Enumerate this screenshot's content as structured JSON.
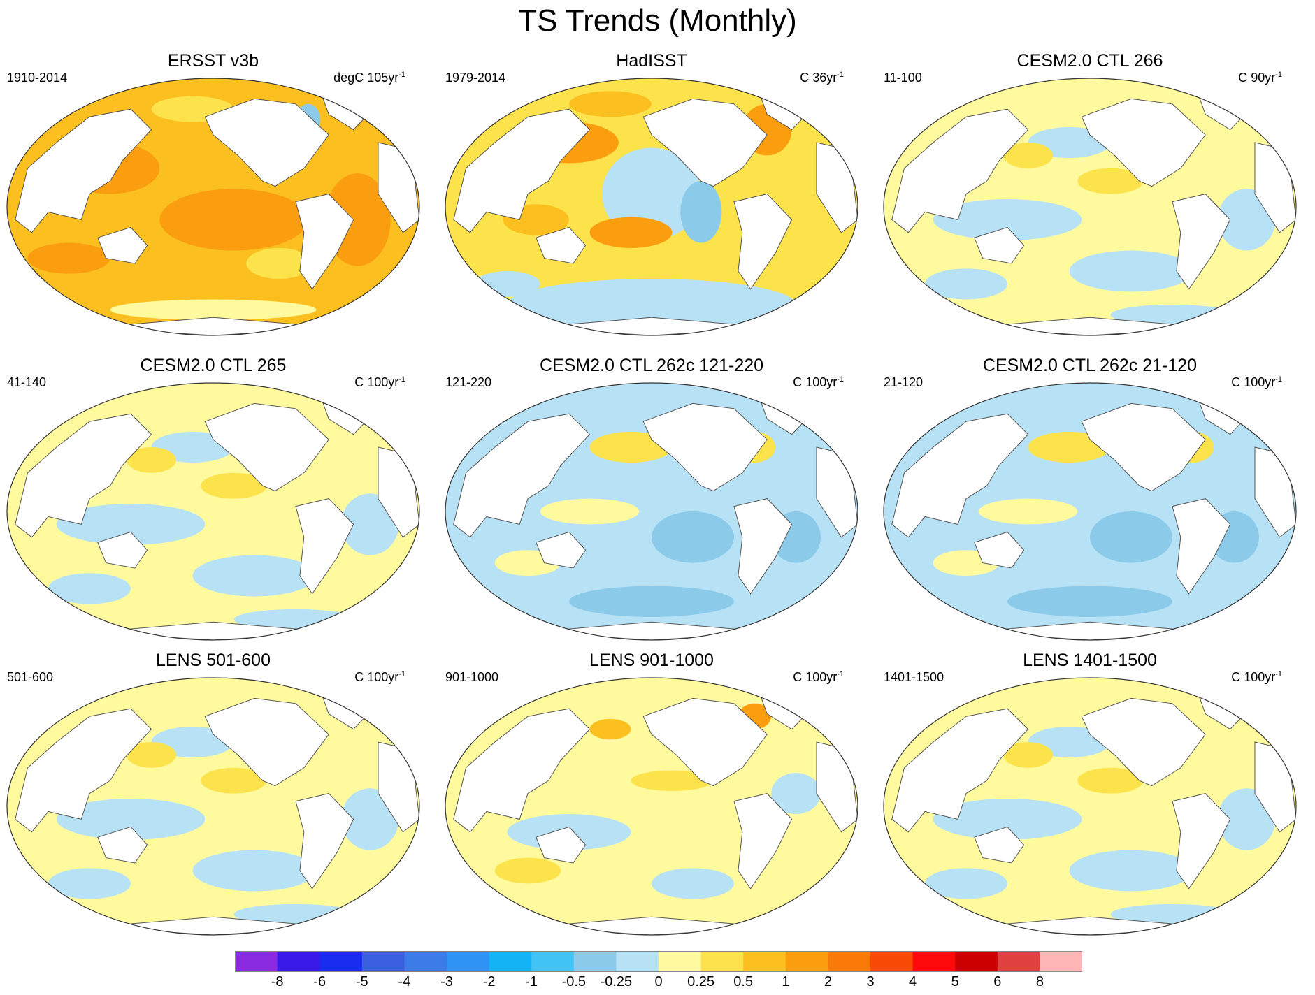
{
  "title": "TS Trends (Monthly)",
  "panels": [
    {
      "title": "ERSST v3b",
      "left": "1910-2014",
      "unit": "degC 105yr",
      "exp": "-1",
      "theme": "warm"
    },
    {
      "title": "HadISST",
      "left": "1979-2014",
      "unit": "C 36yr",
      "exp": "-1",
      "theme": "hadisst"
    },
    {
      "title": "CESM2.0 CTL 266",
      "left": "11-100",
      "unit": "C 90yr",
      "exp": "-1",
      "theme": "mixed"
    },
    {
      "title": "CESM2.0 CTL 265",
      "left": "41-140",
      "unit": "C 100yr",
      "exp": "-1",
      "theme": "mixed"
    },
    {
      "title": "CESM2.0 CTL 262c 121-220",
      "left": "121-220",
      "unit": "C 100yr",
      "exp": "-1",
      "theme": "cool"
    },
    {
      "title": "CESM2.0 CTL 262c 21-120",
      "left": "21-120",
      "unit": "C 100yr",
      "exp": "-1",
      "theme": "cool"
    },
    {
      "title": "LENS 501-600",
      "left": "501-600",
      "unit": "C 100yr",
      "exp": "-1",
      "theme": "mixed"
    },
    {
      "title": "LENS 901-1000",
      "left": "901-1000",
      "unit": "C 100yr",
      "exp": "-1",
      "theme": "pale"
    },
    {
      "title": "LENS 1401-1500",
      "left": "1401-1500",
      "unit": "C 100yr",
      "exp": "-1",
      "theme": "mixed"
    }
  ],
  "colorbar": {
    "colors": [
      "#8a2be2",
      "#3a1ae8",
      "#1a2cf0",
      "#3c5fe0",
      "#3b7ce8",
      "#2f93f5",
      "#12b4f5",
      "#42c3f5",
      "#8ccaea",
      "#b7e2f5",
      "#fffa9e",
      "#fce34b",
      "#fbbf20",
      "#fa9e10",
      "#f97a08",
      "#f94a08",
      "#fe0a0a",
      "#cc0000",
      "#e04040",
      "#ffb6b6"
    ],
    "labels": [
      "-8",
      "-6",
      "-5",
      "-4",
      "-3",
      "-2",
      "-1",
      "-0.5",
      "-0.25",
      "0",
      "0.25",
      "0.5",
      "1",
      "2",
      "3",
      "4",
      "5",
      "6",
      "8"
    ]
  }
}
